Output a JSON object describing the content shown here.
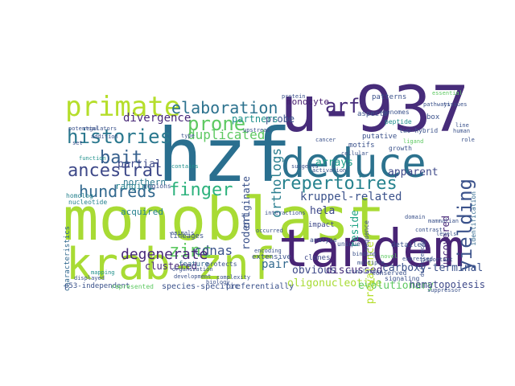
{
  "word_cloud": {
    "background": "#ffffff",
    "palette": [
      "#440154",
      "#3b528b",
      "#21918c",
      "#5ec962",
      "#a8db34"
    ],
    "words": [
      {
        "text": "monoblast",
        "color": "#a8db34"
      },
      {
        "text": "hzf",
        "color": "#2a6f8f"
      },
      {
        "text": "u-937",
        "color": "#472c7a"
      },
      {
        "text": "tandem",
        "color": "#482475"
      },
      {
        "text": "krab-znf",
        "color": "#a8db34"
      },
      {
        "text": "deduce",
        "color": "#2c728e"
      },
      {
        "text": "primate",
        "color": "#b5de2b"
      },
      {
        "text": "elaboration",
        "color": "#2c728e"
      },
      {
        "text": "arf",
        "color": "#472c7a"
      },
      {
        "text": "histories",
        "color": "#2a788e"
      },
      {
        "text": "prone",
        "color": "#5ec962"
      },
      {
        "text": "bait",
        "color": "#355f8d"
      },
      {
        "text": "ancestral",
        "color": "#3e4989"
      },
      {
        "text": "hundreds",
        "color": "#31688e"
      },
      {
        "text": "finger",
        "color": "#2db27d"
      },
      {
        "text": "duplicated",
        "color": "#5ec962"
      },
      {
        "text": "repertoires",
        "color": "#26828e"
      },
      {
        "text": "yielding",
        "color": "#3b528b"
      },
      {
        "text": "zinc",
        "color": "#5ec962"
      },
      {
        "text": "cdnas",
        "color": "#3b528b"
      },
      {
        "text": "degenerate",
        "color": "#482878"
      },
      {
        "text": "kruppel-related",
        "color": "#3b528b"
      },
      {
        "text": "orthologs",
        "color": "#287d8e"
      },
      {
        "text": "divergence",
        "color": "#482878"
      },
      {
        "text": "acquired",
        "color": "#26828e"
      },
      {
        "text": "partial",
        "color": "#3e4989"
      },
      {
        "text": "monocyte",
        "color": "#481f70"
      },
      {
        "text": "probe",
        "color": "#3b528b"
      },
      {
        "text": "partners",
        "color": "#21918c"
      },
      {
        "text": "arrays",
        "color": "#1f9e89"
      },
      {
        "text": "apparent",
        "color": "#3e4989"
      },
      {
        "text": "rodent",
        "color": "#3b528b"
      },
      {
        "text": "uncovered",
        "color": "#482878"
      },
      {
        "text": "reside",
        "color": "#20a486"
      },
      {
        "text": "hela",
        "color": "#3e4989"
      },
      {
        "text": "carboxy-terminal",
        "color": "#3b528b"
      },
      {
        "text": "obvious",
        "color": "#3e4989"
      },
      {
        "text": "discussed",
        "color": "#472c7a"
      },
      {
        "text": "pair",
        "color": "#31688e"
      },
      {
        "text": "oligonucleotide",
        "color": "#a8db34"
      },
      {
        "text": "evolutionary",
        "color": "#5ec962"
      },
      {
        "text": "hematopoiesis",
        "color": "#3e4989"
      },
      {
        "text": "species-specific",
        "color": "#3b528b"
      },
      {
        "text": "preferentially",
        "color": "#3b528b"
      },
      {
        "text": "clustered",
        "color": "#482878"
      },
      {
        "text": "ranging",
        "color": "#26828e"
      },
      {
        "text": "northern",
        "color": "#2a788e"
      },
      {
        "text": "originate",
        "color": "#3b528b"
      },
      {
        "text": "prevalence",
        "color": "#b5de2b"
      },
      {
        "text": "identification",
        "color": "#31688e"
      },
      {
        "text": "feature",
        "color": "#31688e"
      },
      {
        "text": "clones",
        "color": "#3e4989"
      },
      {
        "text": "extensive",
        "color": "#3b528b"
      },
      {
        "text": "characteristics",
        "color": "#31688e"
      },
      {
        "text": "p53-independent",
        "color": "#3b528b"
      },
      {
        "text": "represented",
        "color": "#5ec962"
      },
      {
        "text": "lineages",
        "color": "#3b528b"
      },
      {
        "text": "patterns",
        "color": "#3b528b"
      },
      {
        "text": "regions",
        "color": "#3b528b"
      },
      {
        "text": "two-hybrid",
        "color": "#3b528b"
      },
      {
        "text": "putative",
        "color": "#3b528b"
      },
      {
        "text": "motifs",
        "color": "#3b528b"
      },
      {
        "text": "detailed",
        "color": "#3b528b"
      },
      {
        "text": "sequence",
        "color": "#3e4989"
      },
      {
        "text": "impact",
        "color": "#3e4989"
      },
      {
        "text": "homolog",
        "color": "#26828e"
      },
      {
        "text": "nucleotide",
        "color": "#26828e"
      },
      {
        "text": "regulators",
        "color": "#3b528b"
      },
      {
        "text": "aspects",
        "color": "#3b528b"
      },
      {
        "text": "peptide",
        "color": "#21918c"
      },
      {
        "text": "genomes",
        "color": "#3b528b"
      },
      {
        "text": "box",
        "color": "#3b528b"
      },
      {
        "text": "addition",
        "color": "#3b528b"
      },
      {
        "text": "potential",
        "color": "#3b528b"
      },
      {
        "text": "function",
        "color": "#21918c"
      },
      {
        "text": "conserved",
        "color": "#3b528b"
      },
      {
        "text": "signaling",
        "color": "#3b528b"
      },
      {
        "text": "protects",
        "color": "#3b528b"
      },
      {
        "text": "unique",
        "color": "#3b528b"
      },
      {
        "text": "analyse",
        "color": "#3b528b"
      },
      {
        "text": "complexity",
        "color": "#3b528b"
      },
      {
        "text": "organization",
        "color": "#3b528b"
      },
      {
        "text": "development",
        "color": "#3b528b"
      },
      {
        "text": "biology",
        "color": "#3b528b"
      },
      {
        "text": "displayed",
        "color": "#3b528b"
      },
      {
        "text": "mapping",
        "color": "#21918c"
      },
      {
        "text": "upstream",
        "color": "#3b528b"
      },
      {
        "text": "growth",
        "color": "#3b528b"
      },
      {
        "text": "mammalian",
        "color": "#3b528b"
      },
      {
        "text": "pathways",
        "color": "#3b528b"
      },
      {
        "text": "cancer",
        "color": "#3b528b"
      },
      {
        "text": "ligand",
        "color": "#5ec962"
      },
      {
        "text": "domain",
        "color": "#3b528b"
      },
      {
        "text": "expressed",
        "color": "#3b528b"
      },
      {
        "text": "occurred",
        "color": "#3b528b"
      },
      {
        "text": "encoding",
        "color": "#3b528b"
      },
      {
        "text": "binding",
        "color": "#3b528b"
      },
      {
        "text": "levels",
        "color": "#3b528b"
      },
      {
        "text": "contrast",
        "color": "#3b528b"
      },
      {
        "text": "multiple",
        "color": "#3b528b"
      },
      {
        "text": "important",
        "color": "#3b528b"
      },
      {
        "text": "novel",
        "color": "#5ec962"
      },
      {
        "text": "cellular",
        "color": "#3b528b"
      },
      {
        "text": "activation",
        "color": "#3b528b"
      },
      {
        "text": "suggests",
        "color": "#3b528b"
      },
      {
        "text": "human",
        "color": "#3b528b"
      },
      {
        "text": "tissues",
        "color": "#3b528b"
      },
      {
        "text": "essential",
        "color": "#5ec962"
      },
      {
        "text": "protein",
        "color": "#3b528b"
      },
      {
        "text": "animals",
        "color": "#3b528b"
      },
      {
        "text": "interactions",
        "color": "#3b528b"
      },
      {
        "text": "suppressor",
        "color": "#3b528b"
      },
      {
        "text": "contains",
        "color": "#21918c"
      },
      {
        "text": "stimulatory",
        "color": "#3b528b"
      },
      {
        "text": "differences",
        "color": "#3b528b"
      },
      {
        "text": "type",
        "color": "#3b528b"
      },
      {
        "text": "line",
        "color": "#3b528b"
      },
      {
        "text": "role",
        "color": "#3b528b"
      },
      {
        "text": "set",
        "color": "#3b528b"
      }
    ]
  }
}
